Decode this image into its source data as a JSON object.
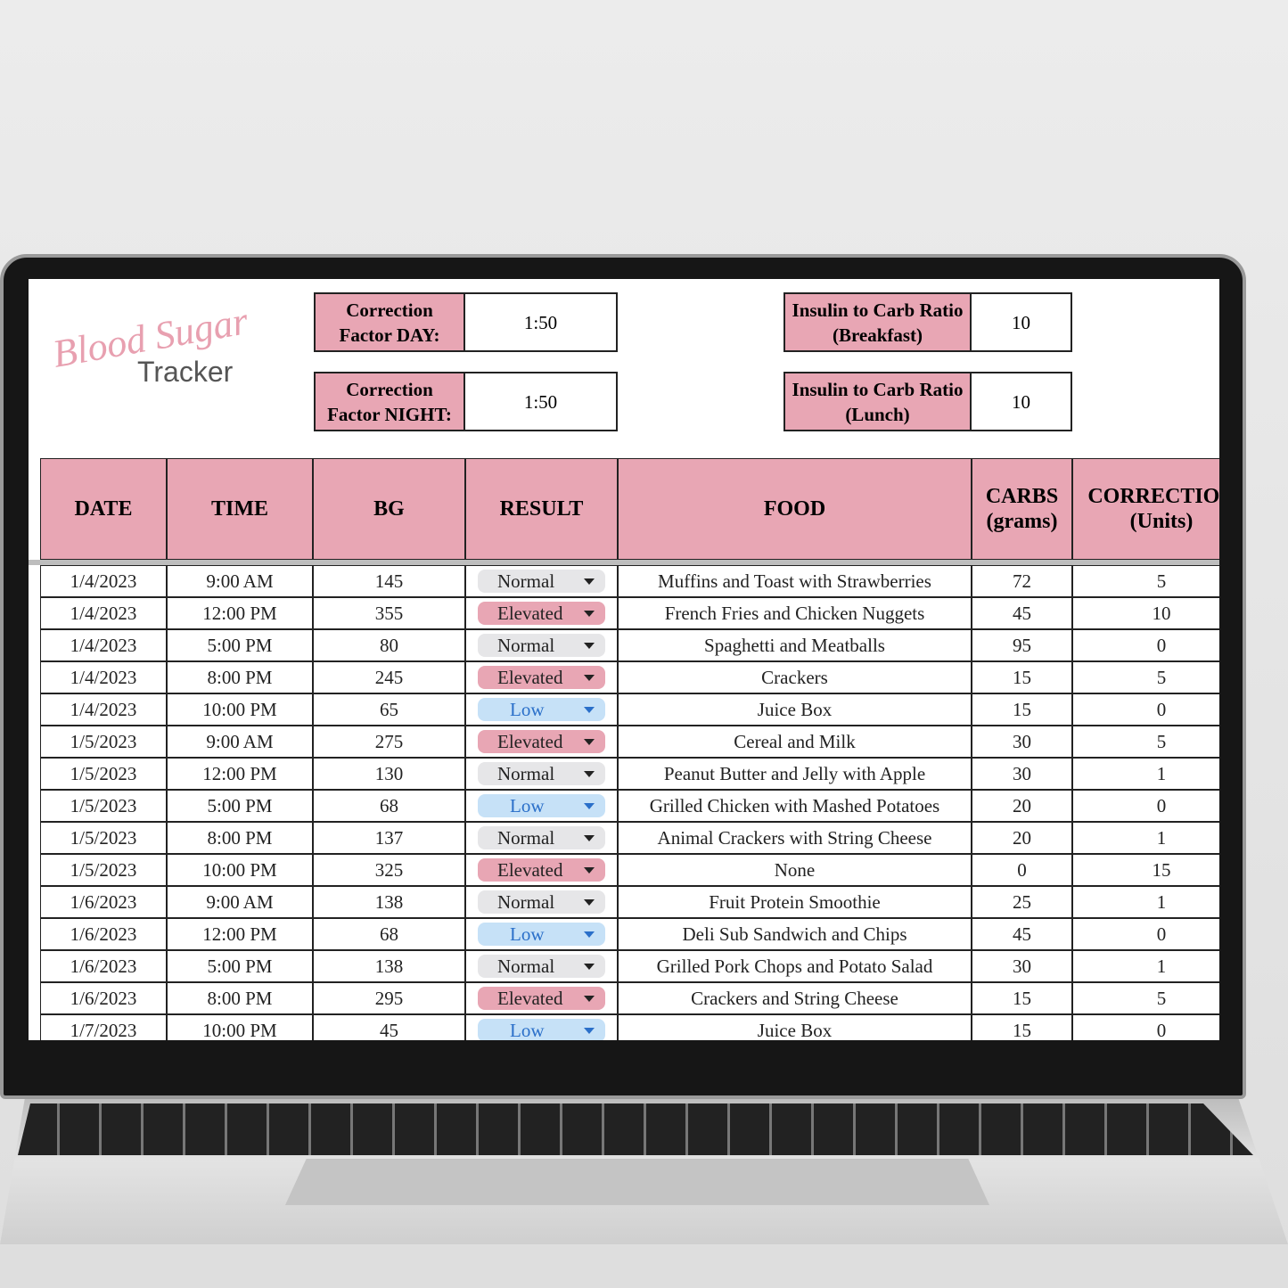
{
  "header": {
    "logo_script": "Blood Sugar",
    "logo_text": "Tracker"
  },
  "settings": [
    {
      "label": "Correction Factor DAY:",
      "value": "1:50"
    },
    {
      "label": "Correction Factor NIGHT:",
      "value": "1:50"
    },
    {
      "label": "Insulin to Carb Ratio (Breakfast)",
      "value": "10"
    },
    {
      "label": "Insulin to Carb Ratio (Lunch)",
      "value": "10"
    }
  ],
  "result_colors": {
    "Normal": "#e6e6e8",
    "Elevated": "#e8a6b4",
    "Low": "#c6e1f7"
  },
  "table": {
    "columns": [
      "DATE",
      "TIME",
      "BG",
      "RESULT",
      "FOOD",
      "CARBS (grams)",
      "CORRECTION (Units)"
    ],
    "rows": [
      [
        "1/4/2023",
        "9:00 AM",
        "145",
        "Normal",
        "Muffins and Toast with Strawberries",
        "72",
        "5"
      ],
      [
        "1/4/2023",
        "12:00 PM",
        "355",
        "Elevated",
        "French Fries and Chicken Nuggets",
        "45",
        "10"
      ],
      [
        "1/4/2023",
        "5:00 PM",
        "80",
        "Normal",
        "Spaghetti and Meatballs",
        "95",
        "0"
      ],
      [
        "1/4/2023",
        "8:00 PM",
        "245",
        "Elevated",
        "Crackers",
        "15",
        "5"
      ],
      [
        "1/4/2023",
        "10:00 PM",
        "65",
        "Low",
        "Juice Box",
        "15",
        "0"
      ],
      [
        "1/5/2023",
        "9:00 AM",
        "275",
        "Elevated",
        "Cereal and Milk",
        "30",
        "5"
      ],
      [
        "1/5/2023",
        "12:00 PM",
        "130",
        "Normal",
        "Peanut Butter and Jelly with Apple",
        "30",
        "1"
      ],
      [
        "1/5/2023",
        "5:00 PM",
        "68",
        "Low",
        "Grilled Chicken with Mashed Potatoes",
        "20",
        "0"
      ],
      [
        "1/5/2023",
        "8:00 PM",
        "137",
        "Normal",
        "Animal Crackers with String Cheese",
        "20",
        "1"
      ],
      [
        "1/5/2023",
        "10:00 PM",
        "325",
        "Elevated",
        "None",
        "0",
        "15"
      ],
      [
        "1/6/2023",
        "9:00 AM",
        "138",
        "Normal",
        "Fruit Protein Smoothie",
        "25",
        "1"
      ],
      [
        "1/6/2023",
        "12:00 PM",
        "68",
        "Low",
        "Deli Sub Sandwich and Chips",
        "45",
        "0"
      ],
      [
        "1/6/2023",
        "5:00 PM",
        "138",
        "Normal",
        "Grilled Pork Chops and Potato Salad",
        "30",
        "1"
      ],
      [
        "1/6/2023",
        "8:00 PM",
        "295",
        "Elevated",
        "Crackers and String Cheese",
        "15",
        "5"
      ],
      [
        "1/7/2023",
        "10:00 PM",
        "45",
        "Low",
        "Juice Box",
        "15",
        "0"
      ]
    ]
  }
}
